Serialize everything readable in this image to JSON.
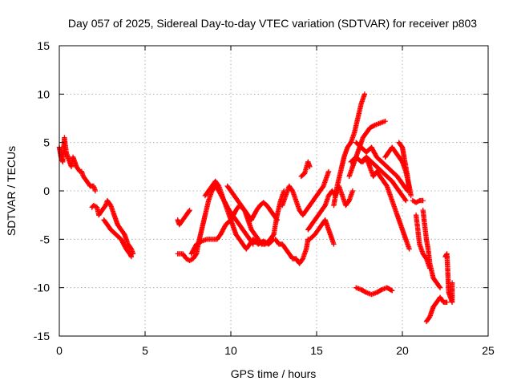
{
  "chart_data": {
    "type": "scatter",
    "title": "Day 057 of 2025, Sidereal Day-to-day VTEC variation (SDTVAR) for receiver p803",
    "xlabel": "GPS time / hours",
    "ylabel": "SDTVAR / TECUs",
    "xlim": [
      0,
      25
    ],
    "ylim": [
      -15,
      15
    ],
    "xticks": [
      0,
      5,
      10,
      15,
      20,
      25
    ],
    "yticks": [
      -15,
      -10,
      -5,
      0,
      5,
      10,
      15
    ],
    "grid": true,
    "marker": "+",
    "marker_color": "#ff0000",
    "series": [
      {
        "name": "s1",
        "points": [
          [
            0.0,
            4.5
          ],
          [
            0.1,
            3.5
          ],
          [
            0.2,
            3.0
          ],
          [
            0.3,
            5.5
          ],
          [
            0.4,
            4.0
          ],
          [
            0.5,
            3.5
          ],
          [
            0.6,
            3.0
          ],
          [
            0.7,
            2.5
          ],
          [
            0.8,
            3.5
          ],
          [
            1.0,
            2.5
          ],
          [
            1.2,
            2.0
          ],
          [
            1.3,
            2.0
          ]
        ]
      },
      {
        "name": "s2",
        "points": [
          [
            1.3,
            2.0
          ],
          [
            1.4,
            1.5
          ],
          [
            1.6,
            1.0
          ],
          [
            1.8,
            0.5
          ],
          [
            2.0,
            0.5
          ],
          [
            2.1,
            0.0
          ]
        ]
      },
      {
        "name": "s3",
        "points": [
          [
            1.9,
            -1.7
          ],
          [
            2.0,
            -1.5
          ],
          [
            2.2,
            -1.7
          ],
          [
            2.3,
            -2.5
          ],
          [
            2.5,
            -2.0
          ],
          [
            2.7,
            -1.5
          ],
          [
            2.8,
            -1.0
          ],
          [
            3.0,
            -1.5
          ],
          [
            3.2,
            -2.5
          ],
          [
            3.4,
            -3.5
          ],
          [
            3.6,
            -4.0
          ],
          [
            3.8,
            -4.5
          ],
          [
            4.0,
            -5.5
          ],
          [
            4.2,
            -6.0
          ],
          [
            4.3,
            -6.5
          ]
        ]
      },
      {
        "name": "s4",
        "points": [
          [
            2.6,
            -3.0
          ],
          [
            2.8,
            -3.5
          ],
          [
            3.0,
            -4.0
          ],
          [
            3.3,
            -4.5
          ],
          [
            3.6,
            -5.0
          ],
          [
            3.9,
            -6.0
          ],
          [
            4.1,
            -6.5
          ],
          [
            4.2,
            -6.8
          ]
        ]
      },
      {
        "name": "s5",
        "points": [
          [
            6.9,
            -3.0
          ],
          [
            7.0,
            -3.5
          ],
          [
            7.4,
            -2.5
          ],
          [
            7.6,
            -2.0
          ]
        ]
      },
      {
        "name": "s6",
        "points": [
          [
            6.9,
            -6.5
          ],
          [
            7.2,
            -6.5
          ],
          [
            7.4,
            -7.0
          ],
          [
            7.6,
            -7.2
          ],
          [
            7.8,
            -7.0
          ],
          [
            8.0,
            -6.5
          ],
          [
            8.1,
            -5.5
          ],
          [
            8.3,
            -4.0
          ],
          [
            8.5,
            -2.5
          ],
          [
            8.7,
            -1.0
          ],
          [
            8.9,
            0.0
          ],
          [
            9.1,
            0.5
          ],
          [
            9.3,
            0.0
          ],
          [
            9.6,
            -1.0
          ],
          [
            9.9,
            -2.0
          ],
          [
            10.1,
            -2.5
          ],
          [
            10.3,
            -3.0
          ],
          [
            10.5,
            -3.5
          ],
          [
            10.7,
            -4.0
          ],
          [
            10.9,
            -4.5
          ],
          [
            11.1,
            -5.0
          ],
          [
            11.3,
            -5.5
          ]
        ]
      },
      {
        "name": "s7",
        "points": [
          [
            7.7,
            -6.5
          ],
          [
            8.0,
            -5.5
          ],
          [
            8.3,
            -5.2
          ],
          [
            8.6,
            -5.0
          ],
          [
            8.9,
            -5.0
          ],
          [
            9.2,
            -5.0
          ],
          [
            9.4,
            -4.5
          ],
          [
            9.7,
            -3.5
          ],
          [
            10.0,
            -3.0
          ],
          [
            10.3,
            -2.0
          ],
          [
            10.5,
            -1.5
          ],
          [
            10.8,
            -2.0
          ],
          [
            11.0,
            -2.5
          ],
          [
            11.2,
            -3.0
          ],
          [
            11.5,
            -2.0
          ],
          [
            11.7,
            -1.5
          ],
          [
            11.9,
            -1.2
          ],
          [
            12.1,
            -1.5
          ],
          [
            12.3,
            -2.0
          ],
          [
            12.5,
            -2.5
          ],
          [
            12.7,
            -3.0
          ]
        ]
      },
      {
        "name": "s8",
        "points": [
          [
            8.5,
            -0.5
          ],
          [
            8.7,
            0.0
          ],
          [
            8.9,
            0.5
          ],
          [
            9.1,
            1.0
          ],
          [
            9.3,
            0.5
          ],
          [
            9.5,
            -0.5
          ],
          [
            9.7,
            -1.5
          ],
          [
            9.9,
            -2.5
          ],
          [
            10.1,
            -3.5
          ],
          [
            10.3,
            -4.5
          ],
          [
            10.5,
            -5.0
          ],
          [
            10.7,
            -5.5
          ],
          [
            10.9,
            -6.0
          ],
          [
            11.1,
            -5.5
          ],
          [
            11.3,
            -5.0
          ],
          [
            11.6,
            -5.5
          ],
          [
            11.9,
            -5.2
          ],
          [
            12.2,
            -5.5
          ],
          [
            12.5,
            -5.0
          ]
        ]
      },
      {
        "name": "s9",
        "points": [
          [
            9.8,
            0.5
          ],
          [
            10.0,
            0.0
          ],
          [
            10.2,
            -0.5
          ],
          [
            10.4,
            -1.0
          ],
          [
            10.6,
            -1.5
          ],
          [
            10.8,
            -2.0
          ],
          [
            11.0,
            -3.0
          ],
          [
            11.2,
            -4.0
          ],
          [
            11.4,
            -4.5
          ],
          [
            11.6,
            -5.0
          ],
          [
            11.8,
            -5.5
          ],
          [
            12.0,
            -5.5
          ],
          [
            12.3,
            -5.0
          ],
          [
            12.5,
            -4.5
          ],
          [
            12.7,
            -2.5
          ],
          [
            12.9,
            -1.0
          ],
          [
            13.1,
            0.0
          ]
        ]
      },
      {
        "name": "s10",
        "points": [
          [
            12.6,
            -5.0
          ],
          [
            12.8,
            -5.5
          ],
          [
            13.0,
            -5.5
          ],
          [
            13.2,
            -6.0
          ],
          [
            13.4,
            -6.5
          ],
          [
            13.6,
            -7.0
          ],
          [
            13.8,
            -7.0
          ],
          [
            14.0,
            -7.5
          ],
          [
            14.2,
            -7.0
          ],
          [
            14.4,
            -6.0
          ],
          [
            14.5,
            -5.0
          ]
        ]
      },
      {
        "name": "s11",
        "points": [
          [
            13.0,
            -1.5
          ],
          [
            13.2,
            -0.5
          ],
          [
            13.4,
            0.5
          ],
          [
            13.6,
            0.0
          ],
          [
            13.8,
            -1.0
          ],
          [
            14.0,
            -2.0
          ],
          [
            14.2,
            -2.5
          ],
          [
            14.4,
            -2.0
          ],
          [
            14.6,
            -1.5
          ],
          [
            14.8,
            -1.0
          ],
          [
            15.0,
            -0.5
          ],
          [
            15.2,
            0.0
          ],
          [
            15.4,
            0.5
          ],
          [
            15.6,
            1.5
          ],
          [
            15.7,
            2.0
          ]
        ]
      },
      {
        "name": "s12",
        "points": [
          [
            14.1,
            1.5
          ],
          [
            14.3,
            1.8
          ],
          [
            14.5,
            3.0
          ],
          [
            14.6,
            2.5
          ]
        ]
      },
      {
        "name": "s13",
        "points": [
          [
            14.5,
            -4.0
          ],
          [
            14.7,
            -3.5
          ],
          [
            14.9,
            -3.0
          ],
          [
            15.1,
            -2.5
          ],
          [
            15.3,
            -2.0
          ],
          [
            15.5,
            -1.5
          ],
          [
            15.7,
            -0.5
          ],
          [
            15.9,
            0.0
          ],
          [
            16.1,
            -0.5
          ],
          [
            16.3,
            0.5
          ],
          [
            16.5,
            -0.5
          ],
          [
            16.7,
            -1.5
          ],
          [
            16.9,
            -1.0
          ],
          [
            17.1,
            0.0
          ]
        ]
      },
      {
        "name": "s14",
        "points": [
          [
            14.6,
            -5.0
          ],
          [
            14.9,
            -4.5
          ],
          [
            15.1,
            -4.0
          ],
          [
            15.3,
            -3.5
          ],
          [
            15.5,
            -3.0
          ],
          [
            15.7,
            -4.0
          ],
          [
            15.9,
            -5.0
          ],
          [
            16.0,
            -5.5
          ]
        ]
      },
      {
        "name": "s15",
        "points": [
          [
            16.0,
            -1.5
          ],
          [
            16.2,
            0.5
          ],
          [
            16.4,
            2.0
          ],
          [
            16.6,
            3.5
          ],
          [
            16.8,
            4.5
          ],
          [
            17.0,
            5.0
          ],
          [
            17.2,
            6.0
          ],
          [
            17.4,
            7.5
          ],
          [
            17.6,
            9.0
          ],
          [
            17.8,
            10.0
          ]
        ]
      },
      {
        "name": "s16",
        "points": [
          [
            16.9,
            1.5
          ],
          [
            17.1,
            2.5
          ],
          [
            17.3,
            3.5
          ],
          [
            17.5,
            4.5
          ],
          [
            17.7,
            5.5
          ],
          [
            17.9,
            6.0
          ],
          [
            18.1,
            6.5
          ],
          [
            18.4,
            6.8
          ],
          [
            18.7,
            7.0
          ],
          [
            19.0,
            7.2
          ]
        ]
      },
      {
        "name": "s17",
        "points": [
          [
            17.0,
            3.0
          ],
          [
            17.3,
            3.5
          ],
          [
            17.6,
            3.0
          ],
          [
            17.9,
            3.5
          ],
          [
            18.2,
            3.0
          ],
          [
            18.5,
            2.5
          ],
          [
            18.8,
            2.0
          ],
          [
            19.1,
            1.5
          ],
          [
            19.4,
            1.0
          ],
          [
            19.6,
            0.5
          ],
          [
            19.8,
            0.0
          ],
          [
            20.0,
            -0.5
          ],
          [
            20.2,
            -1.0
          ]
        ]
      },
      {
        "name": "s18",
        "points": [
          [
            17.3,
            5.0
          ],
          [
            17.6,
            4.5
          ],
          [
            17.9,
            4.0
          ],
          [
            18.2,
            4.5
          ],
          [
            18.5,
            3.5
          ],
          [
            18.8,
            3.0
          ],
          [
            19.1,
            2.5
          ],
          [
            19.4,
            2.0
          ],
          [
            19.7,
            1.5
          ],
          [
            19.9,
            1.0
          ],
          [
            20.1,
            0.5
          ],
          [
            20.3,
            0.0
          ]
        ]
      },
      {
        "name": "s19",
        "points": [
          [
            17.7,
            3.0
          ],
          [
            17.9,
            3.5
          ],
          [
            18.1,
            2.5
          ],
          [
            18.3,
            1.5
          ],
          [
            18.5,
            2.0
          ],
          [
            18.7,
            1.5
          ],
          [
            18.9,
            1.0
          ],
          [
            19.1,
            0.5
          ],
          [
            19.3,
            -0.5
          ],
          [
            19.5,
            -1.5
          ],
          [
            19.7,
            -2.5
          ],
          [
            19.9,
            -3.5
          ],
          [
            20.1,
            -4.5
          ],
          [
            20.3,
            -5.5
          ],
          [
            20.4,
            -6.0
          ]
        ]
      },
      {
        "name": "s20",
        "points": [
          [
            19.0,
            3.5
          ],
          [
            19.2,
            4.0
          ],
          [
            19.4,
            4.5
          ],
          [
            19.6,
            4.0
          ],
          [
            19.8,
            3.5
          ],
          [
            20.0,
            3.0
          ],
          [
            20.2,
            2.0
          ],
          [
            20.4,
            0.5
          ],
          [
            20.5,
            -0.5
          ]
        ]
      },
      {
        "name": "s21",
        "points": [
          [
            19.8,
            5.0
          ],
          [
            20.0,
            4.5
          ],
          [
            20.1,
            3.5
          ],
          [
            20.3,
            1.5
          ],
          [
            20.4,
            0.0
          ]
        ]
      },
      {
        "name": "s22",
        "points": [
          [
            17.3,
            -10.0
          ],
          [
            17.6,
            -10.2
          ],
          [
            17.9,
            -10.5
          ],
          [
            18.2,
            -10.7
          ],
          [
            18.5,
            -10.5
          ],
          [
            18.8,
            -10.2
          ],
          [
            19.1,
            -10.0
          ],
          [
            19.4,
            -10.3
          ]
        ]
      },
      {
        "name": "s23",
        "points": [
          [
            20.6,
            -1.0
          ],
          [
            20.8,
            -1.2
          ],
          [
            21.0,
            -1.0
          ],
          [
            21.2,
            -1.0
          ]
        ]
      },
      {
        "name": "s24",
        "points": [
          [
            20.8,
            -2.5
          ],
          [
            20.9,
            -4.0
          ],
          [
            21.0,
            -5.5
          ],
          [
            21.2,
            -6.5
          ],
          [
            21.4,
            -7.0
          ],
          [
            21.6,
            -8.0
          ]
        ]
      },
      {
        "name": "s25",
        "points": [
          [
            21.2,
            -2.0
          ],
          [
            21.3,
            -3.5
          ],
          [
            21.4,
            -5.0
          ],
          [
            21.5,
            -6.0
          ],
          [
            21.6,
            -7.5
          ],
          [
            21.8,
            -9.0
          ],
          [
            22.0,
            -9.5
          ],
          [
            22.2,
            -10.0
          ]
        ]
      },
      {
        "name": "s26",
        "points": [
          [
            21.4,
            -13.5
          ],
          [
            21.6,
            -13.0
          ],
          [
            21.8,
            -12.0
          ],
          [
            22.0,
            -11.5
          ],
          [
            22.2,
            -11.0
          ],
          [
            22.4,
            -11.5
          ],
          [
            22.6,
            -11.5
          ]
        ]
      },
      {
        "name": "s27",
        "points": [
          [
            22.5,
            -6.8
          ],
          [
            22.6,
            -6.5
          ],
          [
            22.7,
            -10.5
          ],
          [
            22.9,
            -11.5
          ],
          [
            22.9,
            -9.5
          ]
        ]
      }
    ]
  }
}
